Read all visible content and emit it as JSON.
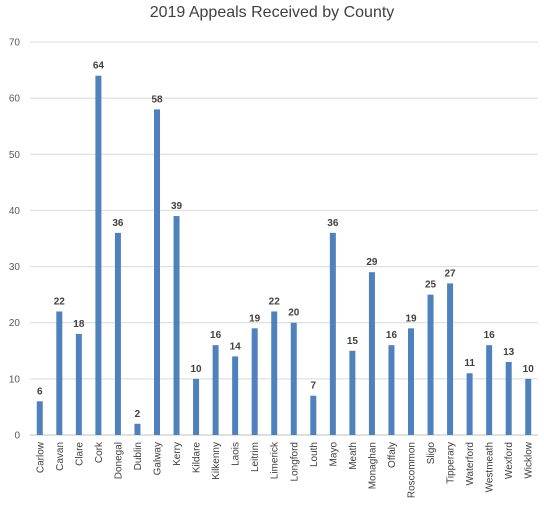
{
  "chart_data": {
    "type": "bar",
    "title": "2019 Appeals Received by County",
    "xlabel": "",
    "ylabel": "",
    "ylim": [
      0,
      70
    ],
    "yticks": [
      0,
      10,
      20,
      30,
      40,
      50,
      60,
      70
    ],
    "grid": true,
    "legend": "none",
    "bar_color": "#4f81bd",
    "categories": [
      "Carlow",
      "Cavan",
      "Clare",
      "Cork",
      "Donegal",
      "Dublin",
      "Galway",
      "Kerry",
      "Kildare",
      "Kilkenny",
      "Laois",
      "Leitrim",
      "Limerick",
      "Longford",
      "Louth",
      "Mayo",
      "Meath",
      "Monaghan",
      "Offaly",
      "Roscommon",
      "Sligo",
      "Tipperary",
      "Waterford",
      "Westmeath",
      "Wexford",
      "Wicklow"
    ],
    "values": [
      6,
      22,
      18,
      64,
      36,
      2,
      58,
      39,
      10,
      16,
      14,
      19,
      22,
      20,
      7,
      36,
      15,
      29,
      16,
      19,
      25,
      27,
      11,
      16,
      13,
      10
    ]
  }
}
